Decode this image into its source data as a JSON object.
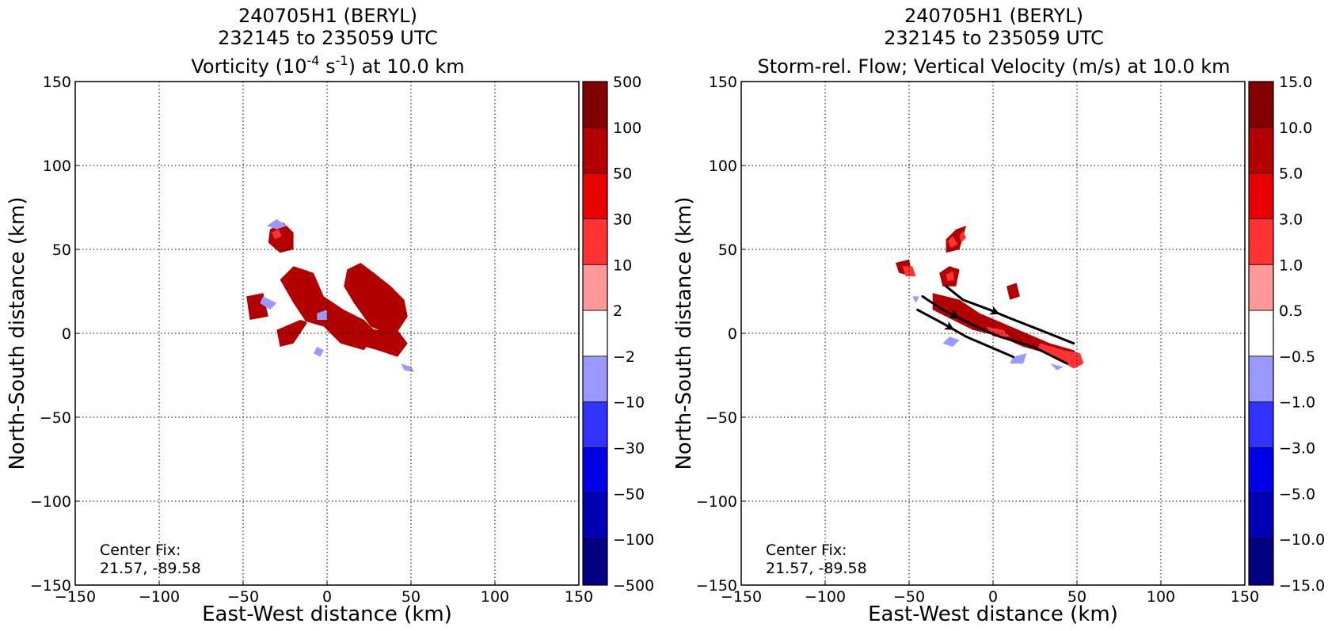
{
  "chart_data": [
    {
      "type": "heatmap",
      "title_lines": [
        "240705H1 (BERYL)",
        "232145 to 235059 UTC"
      ],
      "title_var": {
        "pre": "Vorticity (10",
        "sup1": "-4",
        "mid": " s",
        "sup2": "-1",
        "post": ") at 10.0 km"
      },
      "xlabel": "East-West distance (km)",
      "ylabel": "North-South distance (km)",
      "xlim": [
        -150,
        150
      ],
      "ylim": [
        -150,
        150
      ],
      "xticks": [
        "−150",
        "−100",
        "−50",
        "0",
        "50",
        "100",
        "150"
      ],
      "yticks": [
        "150",
        "100",
        "50",
        "0",
        "−50",
        "−100",
        "−150"
      ],
      "grid": true,
      "annotation": [
        "Center Fix:",
        "21.57, -89.58"
      ],
      "colorbar_labels": [
        "500",
        "100",
        "50",
        "30",
        "10",
        "2",
        "−2",
        "−10",
        "−30",
        "−50",
        "−100",
        "−500"
      ],
      "colorbar_colors": [
        "#800000",
        "#b20000",
        "#e60000",
        "#ff3333",
        "#ff9999",
        "#ffffff",
        "#9999ff",
        "#3333ff",
        "#0000e6",
        "#0000b2",
        "#000080"
      ],
      "regions": [
        {
          "level": 1,
          "points": [
            [
              -48,
              22
            ],
            [
              -38,
              24
            ],
            [
              -35,
              10
            ],
            [
              -46,
              8
            ]
          ]
        },
        {
          "level": 1,
          "points": [
            [
              -28,
              32
            ],
            [
              -20,
              40
            ],
            [
              -8,
              36
            ],
            [
              -2,
              22
            ],
            [
              10,
              14
            ],
            [
              22,
              8
            ],
            [
              30,
              0
            ],
            [
              22,
              -10
            ],
            [
              8,
              -6
            ],
            [
              -2,
              4
            ],
            [
              -16,
              8
            ],
            [
              -30,
              2
            ],
            [
              -28,
              -8
            ],
            [
              -20,
              -6
            ],
            [
              -12,
              6
            ],
            [
              -20,
              18
            ]
          ]
        },
        {
          "level": 1,
          "points": [
            [
              12,
              38
            ],
            [
              20,
              42
            ],
            [
              28,
              36
            ],
            [
              38,
              28
            ],
            [
              46,
              20
            ],
            [
              48,
              10
            ],
            [
              40,
              -2
            ],
            [
              26,
              4
            ],
            [
              16,
              18
            ],
            [
              10,
              28
            ]
          ]
        },
        {
          "level": 1,
          "points": [
            [
              4,
              -2
            ],
            [
              16,
              -6
            ],
            [
              30,
              -10
            ],
            [
              42,
              -14
            ],
            [
              48,
              -6
            ],
            [
              42,
              2
            ],
            [
              30,
              2
            ],
            [
              16,
              4
            ]
          ]
        },
        {
          "level": 1,
          "points": [
            [
              -34,
              62
            ],
            [
              -26,
              66
            ],
            [
              -20,
              60
            ],
            [
              -20,
              50
            ],
            [
              -28,
              48
            ],
            [
              -35,
              54
            ]
          ]
        },
        {
          "level": 3,
          "points": [
            [
              -33,
              60
            ],
            [
              -29,
              62
            ],
            [
              -27,
              58
            ],
            [
              -31,
              56
            ]
          ]
        },
        {
          "level": 6,
          "points": [
            [
              -36,
              64
            ],
            [
              -30,
              68
            ],
            [
              -24,
              64
            ],
            [
              -30,
              62
            ]
          ]
        },
        {
          "level": 6,
          "points": [
            [
              -38,
              22
            ],
            [
              -30,
              18
            ],
            [
              -34,
              14
            ],
            [
              -40,
              18
            ]
          ]
        },
        {
          "level": 6,
          "points": [
            [
              -6,
              12
            ],
            [
              0,
              14
            ],
            [
              0,
              8
            ],
            [
              -6,
              8
            ]
          ]
        },
        {
          "level": 6,
          "points": [
            [
              44,
              -18
            ],
            [
              50,
              -20
            ],
            [
              52,
              -23
            ],
            [
              46,
              -22
            ]
          ]
        },
        {
          "level": 6,
          "points": [
            [
              -6,
              -8
            ],
            [
              -2,
              -10
            ],
            [
              -4,
              -14
            ],
            [
              -8,
              -12
            ]
          ]
        }
      ]
    },
    {
      "type": "heatmap",
      "title_lines": [
        "240705H1 (BERYL)",
        "232145 to 235059 UTC",
        "Storm-rel. Flow; Vertical Velocity (m/s) at 10.0 km"
      ],
      "xlabel": "East-West distance (km)",
      "ylabel": "North-South distance (km)",
      "xlim": [
        -150,
        150
      ],
      "ylim": [
        -150,
        150
      ],
      "xticks": [
        "−150",
        "−100",
        "−50",
        "0",
        "50",
        "100",
        "150"
      ],
      "yticks": [
        "150",
        "100",
        "50",
        "0",
        "−50",
        "−100",
        "−150"
      ],
      "grid": true,
      "annotation": [
        "Center Fix:",
        "21.57, -89.58"
      ],
      "colorbar_labels": [
        "15.0",
        "10.0",
        "5.0",
        "3.0",
        "1.0",
        "0.5",
        "−0.5",
        "−1.0",
        "−3.0",
        "−5.0",
        "−10.0",
        "−15.0"
      ],
      "colorbar_colors": [
        "#800000",
        "#b20000",
        "#e60000",
        "#ff3333",
        "#ff9999",
        "#ffffff",
        "#9999ff",
        "#3333ff",
        "#0000e6",
        "#0000b2",
        "#000080"
      ],
      "regions": [
        {
          "level": 1,
          "points": [
            [
              -36,
              24
            ],
            [
              -20,
              20
            ],
            [
              -8,
              12
            ],
            [
              6,
              6
            ],
            [
              20,
              0
            ],
            [
              34,
              -6
            ],
            [
              48,
              -10
            ],
            [
              52,
              -14
            ],
            [
              46,
              -18
            ],
            [
              32,
              -12
            ],
            [
              18,
              -8
            ],
            [
              4,
              -2
            ],
            [
              -12,
              2
            ],
            [
              -24,
              8
            ],
            [
              -36,
              14
            ]
          ]
        },
        {
          "level": 1,
          "points": [
            [
              -28,
              56
            ],
            [
              -22,
              62
            ],
            [
              -16,
              64
            ],
            [
              -20,
              50
            ],
            [
              -28,
              48
            ]
          ]
        },
        {
          "level": 1,
          "points": [
            [
              -32,
              36
            ],
            [
              -26,
              40
            ],
            [
              -20,
              38
            ],
            [
              -22,
              28
            ],
            [
              -30,
              28
            ]
          ]
        },
        {
          "level": 1,
          "points": [
            [
              8,
              28
            ],
            [
              14,
              30
            ],
            [
              16,
              22
            ],
            [
              10,
              20
            ]
          ]
        },
        {
          "level": 1,
          "points": [
            [
              -58,
              42
            ],
            [
              -50,
              44
            ],
            [
              -48,
              34
            ],
            [
              -56,
              36
            ]
          ]
        },
        {
          "level": 3,
          "points": [
            [
              -27,
              55
            ],
            [
              -24,
              58
            ],
            [
              -21,
              53
            ],
            [
              -25,
              51
            ]
          ]
        },
        {
          "level": 3,
          "points": [
            [
              -20,
              58
            ],
            [
              -18,
              61
            ],
            [
              -16,
              57
            ],
            [
              -19,
              54
            ]
          ]
        },
        {
          "level": 3,
          "points": [
            [
              -54,
              40
            ],
            [
              -48,
              40
            ],
            [
              -46,
              34
            ],
            [
              -52,
              34
            ]
          ]
        },
        {
          "level": 3,
          "points": [
            [
              -28,
              35
            ],
            [
              -24,
              37
            ],
            [
              -23,
              32
            ],
            [
              -27,
              31
            ]
          ]
        },
        {
          "level": 3,
          "points": [
            [
              28,
              -6
            ],
            [
              42,
              -10
            ],
            [
              52,
              -12
            ],
            [
              54,
              -18
            ],
            [
              48,
              -21
            ],
            [
              36,
              -14
            ],
            [
              26,
              -10
            ]
          ]
        },
        {
          "level": 3,
          "points": [
            [
              -4,
              4
            ],
            [
              6,
              2
            ],
            [
              10,
              -2
            ],
            [
              0,
              -2
            ]
          ]
        },
        {
          "level": 6,
          "points": [
            [
              -26,
              -2
            ],
            [
              -20,
              -4
            ],
            [
              -24,
              -8
            ],
            [
              -30,
              -6
            ]
          ]
        },
        {
          "level": 6,
          "points": [
            [
              12,
              -14
            ],
            [
              20,
              -12
            ],
            [
              18,
              -18
            ],
            [
              10,
              -18
            ]
          ]
        },
        {
          "level": 6,
          "points": [
            [
              34,
              -18
            ],
            [
              42,
              -20
            ],
            [
              38,
              -22
            ]
          ]
        },
        {
          "level": 6,
          "points": [
            [
              -48,
              22
            ],
            [
              -44,
              22
            ],
            [
              -46,
              18
            ]
          ]
        }
      ],
      "streamlines": [
        {
          "points": [
            [
              -28,
              28
            ],
            [
              -18,
              20
            ],
            [
              -2,
              14
            ],
            [
              10,
              9
            ],
            [
              28,
              2
            ],
            [
              48,
              -6
            ]
          ],
          "arrow_at": 3
        },
        {
          "points": [
            [
              -42,
              22
            ],
            [
              -30,
              14
            ],
            [
              -10,
              4
            ],
            [
              4,
              -2
            ],
            [
              24,
              -8
            ],
            [
              44,
              -18
            ]
          ],
          "arrow_at": 2
        },
        {
          "points": [
            [
              -45,
              14
            ],
            [
              -30,
              6
            ],
            [
              -16,
              -2
            ],
            [
              -2,
              -8
            ],
            [
              12,
              -14
            ]
          ],
          "arrow_at": 2
        }
      ]
    }
  ]
}
